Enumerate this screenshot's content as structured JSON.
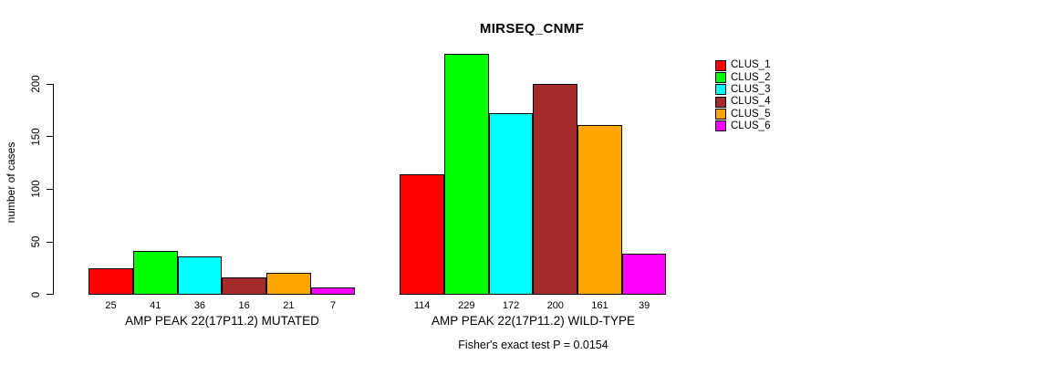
{
  "chart": {
    "title": "MIRSEQ_CNMF",
    "ylabel": "number of cases",
    "annotation": "Fisher's exact test P = 0.0154"
  },
  "chart_data": {
    "type": "bar",
    "title": "MIRSEQ_CNMF",
    "xlabel": "",
    "ylabel": "number of cases",
    "categories": [
      "AMP PEAK 22(17P11.2) MUTATED",
      "AMP PEAK 22(17P11.2) WILD-TYPE"
    ],
    "series": [
      {
        "name": "CLUS_1",
        "color": "#FF0000",
        "values": [
          25,
          114
        ]
      },
      {
        "name": "CLUS_2",
        "color": "#00FF00",
        "values": [
          41,
          229
        ]
      },
      {
        "name": "CLUS_3",
        "color": "#00FFFF",
        "values": [
          36,
          172
        ]
      },
      {
        "name": "CLUS_4",
        "color": "#A52A2A",
        "values": [
          16,
          200
        ]
      },
      {
        "name": "CLUS_5",
        "color": "#FFA500",
        "values": [
          21,
          161
        ]
      },
      {
        "name": "CLUS_6",
        "color": "#FF00FF",
        "values": [
          7,
          39
        ]
      }
    ],
    "value_labels_shown": true,
    "yticks": [
      0,
      50,
      100,
      150,
      200
    ],
    "ylim": [
      0,
      232
    ],
    "grid": false,
    "legend_position": "right-outside",
    "annotation": "Fisher's exact test P = 0.0154",
    "background": "#FFFFFF"
  }
}
